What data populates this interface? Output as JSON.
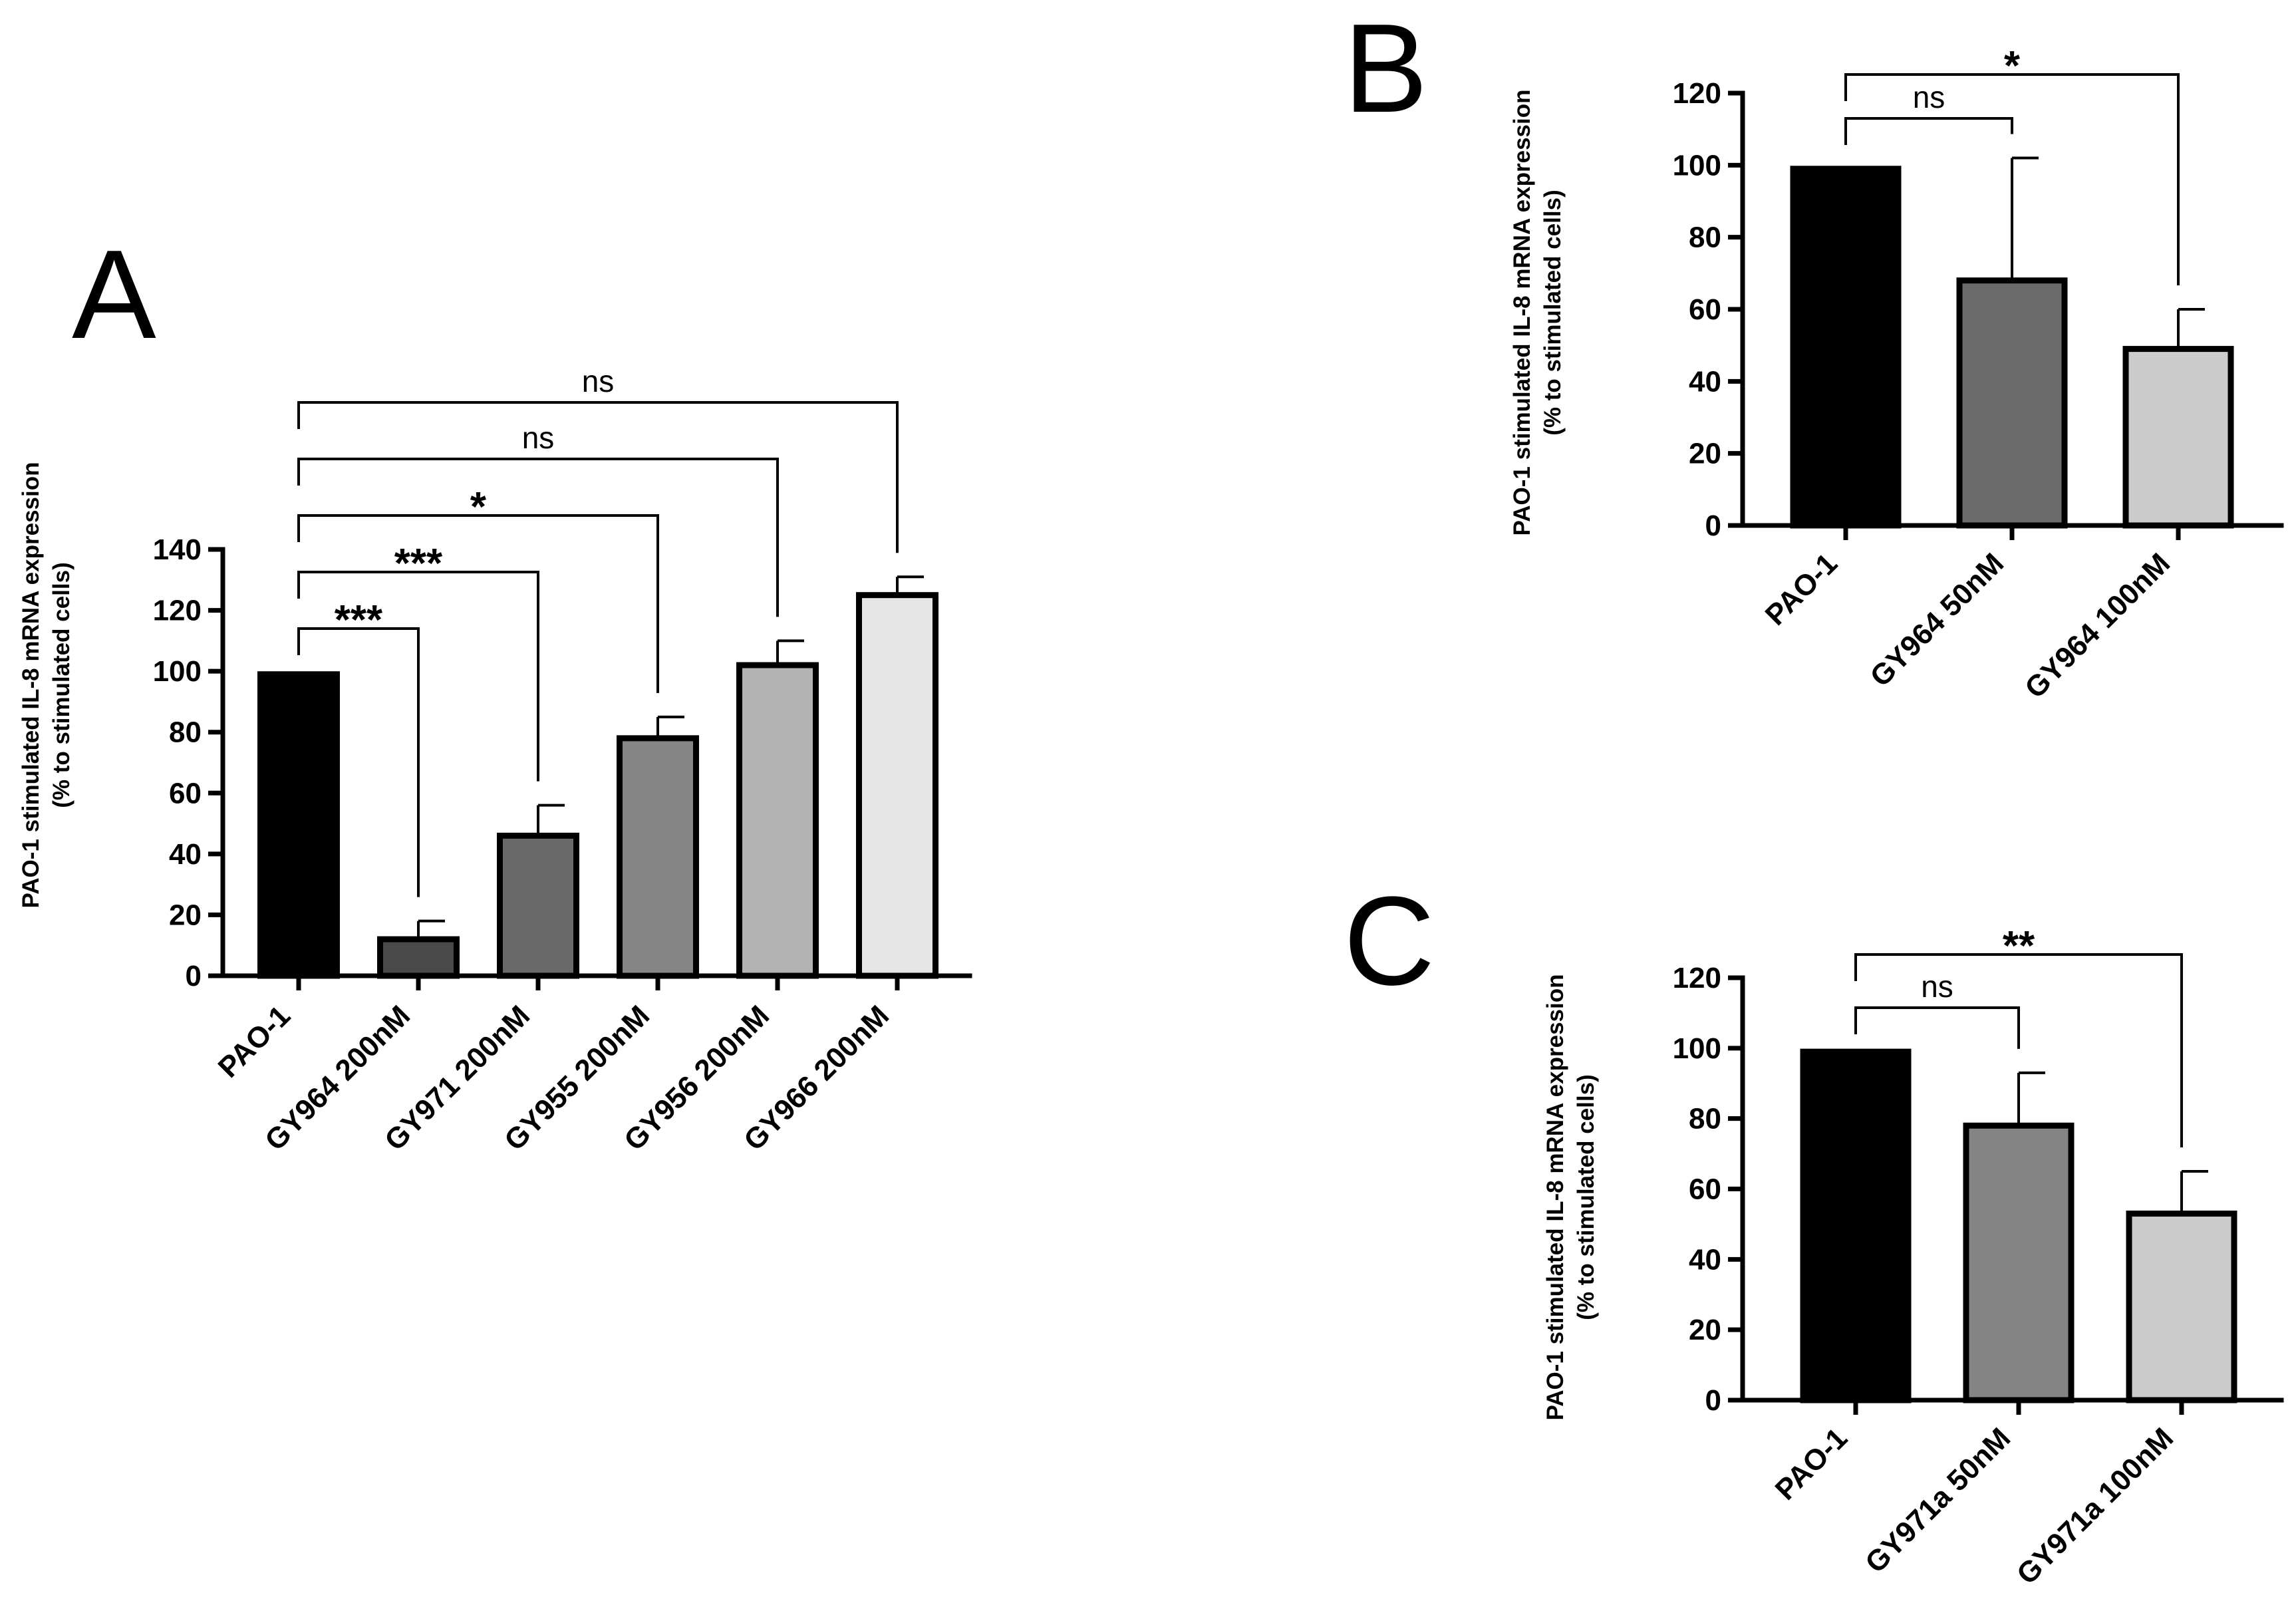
{
  "figure": {
    "panels": [
      "A",
      "B",
      "C"
    ]
  },
  "chart_data": [
    {
      "type": "bar",
      "panel": "A",
      "categories": [
        "PAO-1",
        "GY964 200nM",
        "GY971 200nM",
        "GY955 200nM",
        "GY956 200nM",
        "GY966 200nM"
      ],
      "values": [
        99,
        12,
        46,
        78,
        102,
        125
      ],
      "errors": [
        0,
        6,
        10,
        7,
        8,
        6
      ],
      "colors": [
        "#000000",
        "#494949",
        "#696969",
        "#868686",
        "#b3b3b3",
        "#e6e6e6"
      ],
      "ylabel": "PAO-1 stimulated IL-8 mRNA expression",
      "ylabel2": "(% to stimulated cells)",
      "ylim": [
        0,
        140
      ],
      "yticks": [
        0,
        20,
        40,
        60,
        80,
        100,
        120,
        140
      ],
      "ytick_labels": [
        "0",
        "20",
        "40",
        "60",
        "80",
        "100",
        "120",
        "140"
      ],
      "comparisons": [
        {
          "from": 0,
          "to": 1,
          "label": "***"
        },
        {
          "from": 0,
          "to": 2,
          "label": "***"
        },
        {
          "from": 0,
          "to": 3,
          "label": "*"
        },
        {
          "from": 0,
          "to": 4,
          "label": "ns"
        },
        {
          "from": 0,
          "to": 5,
          "label": "ns"
        }
      ]
    },
    {
      "type": "bar",
      "panel": "B",
      "categories": [
        "PAO-1",
        "GY964 50nM",
        "GY964 100nM"
      ],
      "values": [
        99,
        68,
        49
      ],
      "errors": [
        0,
        34,
        11
      ],
      "colors": [
        "#000000",
        "#6b6b6b",
        "#cccccc"
      ],
      "ylabel": "PAO-1 stimulated IL-8 mRNA expression",
      "ylabel2": "(% to stimulated cells)",
      "ylim": [
        0,
        120
      ],
      "yticks": [
        0,
        20,
        40,
        60,
        80,
        100,
        120
      ],
      "ytick_labels": [
        "0",
        "20",
        "40",
        "60",
        "80",
        "100",
        "120"
      ],
      "comparisons": [
        {
          "from": 0,
          "to": 1,
          "label": "ns"
        },
        {
          "from": 0,
          "to": 2,
          "label": "*"
        }
      ]
    },
    {
      "type": "bar",
      "panel": "C",
      "categories": [
        "PAO-1",
        "GY971a 50nM",
        "GY971a 100nM"
      ],
      "values": [
        99,
        78,
        53
      ],
      "errors": [
        0,
        15,
        12
      ],
      "colors": [
        "#000000",
        "#848484",
        "#cccccc"
      ],
      "ylabel": "PAO-1 stimulated IL-8 mRNA expression",
      "ylabel2": "(% to stimulated cells)",
      "ylim": [
        0,
        120
      ],
      "yticks": [
        0,
        20,
        40,
        60,
        80,
        100,
        120
      ],
      "ytick_labels": [
        "0",
        "20",
        "40",
        "60",
        "80",
        "100",
        "120"
      ],
      "comparisons": [
        {
          "from": 0,
          "to": 1,
          "label": "ns"
        },
        {
          "from": 0,
          "to": 2,
          "label": "**"
        }
      ]
    }
  ]
}
